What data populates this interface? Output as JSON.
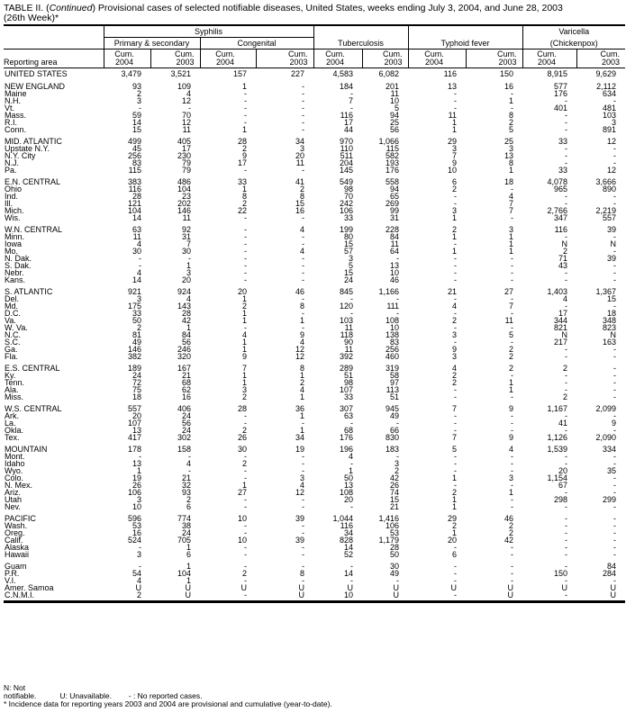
{
  "title": {
    "prefix": "TABLE II. (",
    "italic": "Continued",
    "rest": ") Provisional cases of selected notifiable diseases, United States, weeks ending July 3, 2004, and June 28, 2003",
    "line2": "(26th Week)*"
  },
  "headers": {
    "syphilis": "Syphilis",
    "primary": "Primary & secondary",
    "congenital": "Congenital",
    "tuberculosis": "Tuberculosis",
    "typhoid": "Typhoid fever",
    "varicella": "Varicella",
    "chickenpox": "(Chickenpox)",
    "reporting_area": "Reporting area",
    "cum": "Cum.",
    "y2004": "2004",
    "y2003": "2003"
  },
  "groups": [
    [
      [
        "UNITED STATES",
        "3,479",
        "3,521",
        "157",
        "227",
        "4,583",
        "6,082",
        "116",
        "150",
        "8,915",
        "9,629"
      ]
    ],
    [
      [
        "NEW ENGLAND",
        "93",
        "109",
        "1",
        "-",
        "184",
        "201",
        "13",
        "16",
        "577",
        "2,112"
      ],
      [
        "Maine",
        "2",
        "4",
        "-",
        "-",
        "-",
        "11",
        "-",
        "-",
        "176",
        "634"
      ],
      [
        "N.H.",
        "3",
        "12",
        "-",
        "-",
        "7",
        "10",
        "-",
        "1",
        "-",
        "-"
      ],
      [
        "Vt.",
        "-",
        "-",
        "-",
        "-",
        "-",
        "5",
        "-",
        "-",
        "401",
        "481"
      ],
      [
        "Mass.",
        "59",
        "70",
        "-",
        "-",
        "116",
        "94",
        "11",
        "8",
        "-",
        "103"
      ],
      [
        "R.I.",
        "14",
        "12",
        "-",
        "-",
        "17",
        "25",
        "1",
        "2",
        "-",
        "3"
      ],
      [
        "Conn.",
        "15",
        "11",
        "1",
        "-",
        "44",
        "56",
        "1",
        "5",
        "-",
        "891"
      ]
    ],
    [
      [
        "MID. ATLANTIC",
        "499",
        "405",
        "28",
        "34",
        "970",
        "1,066",
        "29",
        "25",
        "33",
        "12"
      ],
      [
        "Upstate N.Y.",
        "45",
        "17",
        "2",
        "3",
        "110",
        "115",
        "3",
        "3",
        "-",
        "-"
      ],
      [
        "N.Y. City",
        "256",
        "230",
        "9",
        "20",
        "511",
        "582",
        "7",
        "13",
        "-",
        "-"
      ],
      [
        "N.J.",
        "83",
        "79",
        "17",
        "11",
        "204",
        "193",
        "9",
        "8",
        "-",
        "-"
      ],
      [
        "Pa.",
        "115",
        "79",
        "-",
        "-",
        "145",
        "176",
        "10",
        "1",
        "33",
        "12"
      ]
    ],
    [
      [
        "E.N. CENTRAL",
        "383",
        "486",
        "33",
        "41",
        "549",
        "558",
        "6",
        "18",
        "4,078",
        "3,666"
      ],
      [
        "Ohio",
        "116",
        "104",
        "1",
        "2",
        "98",
        "94",
        "2",
        "-",
        "965",
        "890"
      ],
      [
        "Ind.",
        "28",
        "23",
        "8",
        "8",
        "70",
        "65",
        "-",
        "4",
        "-",
        "-"
      ],
      [
        "Ill.",
        "121",
        "202",
        "2",
        "15",
        "242",
        "269",
        "-",
        "7",
        "-",
        "-"
      ],
      [
        "Mich.",
        "104",
        "146",
        "22",
        "16",
        "106",
        "99",
        "3",
        "7",
        "2,766",
        "2,219"
      ],
      [
        "Wis.",
        "14",
        "11",
        "-",
        "-",
        "33",
        "31",
        "1",
        "-",
        "347",
        "557"
      ]
    ],
    [
      [
        "W.N. CENTRAL",
        "63",
        "92",
        "-",
        "4",
        "199",
        "228",
        "2",
        "3",
        "116",
        "39"
      ],
      [
        "Minn.",
        "11",
        "31",
        "-",
        "-",
        "80",
        "84",
        "1",
        "1",
        "-",
        "-"
      ],
      [
        "Iowa",
        "4",
        "7",
        "-",
        "-",
        "15",
        "11",
        "-",
        "1",
        "N",
        "N"
      ],
      [
        "Mo.",
        "30",
        "30",
        "-",
        "4",
        "57",
        "64",
        "1",
        "1",
        "2",
        "-"
      ],
      [
        "N. Dak.",
        "-",
        "-",
        "-",
        "-",
        "3",
        "-",
        "-",
        "-",
        "71",
        "39"
      ],
      [
        "S. Dak.",
        "-",
        "1",
        "-",
        "-",
        "5",
        "13",
        "-",
        "-",
        "43",
        "-"
      ],
      [
        "Nebr.",
        "4",
        "3",
        "-",
        "-",
        "15",
        "10",
        "-",
        "-",
        "-",
        "-"
      ],
      [
        "Kans.",
        "14",
        "20",
        "-",
        "-",
        "24",
        "46",
        "-",
        "-",
        "-",
        "-"
      ]
    ],
    [
      [
        "S. ATLANTIC",
        "921",
        "924",
        "20",
        "46",
        "845",
        "1,166",
        "21",
        "27",
        "1,403",
        "1,367"
      ],
      [
        "Del.",
        "3",
        "4",
        "1",
        "-",
        "-",
        "-",
        "-",
        "-",
        "4",
        "15"
      ],
      [
        "Md.",
        "175",
        "143",
        "2",
        "8",
        "120",
        "111",
        "4",
        "7",
        "-",
        "-"
      ],
      [
        "D.C.",
        "33",
        "28",
        "1",
        "-",
        "-",
        "-",
        "-",
        "-",
        "17",
        "18"
      ],
      [
        "Va.",
        "50",
        "42",
        "1",
        "1",
        "103",
        "108",
        "2",
        "11",
        "344",
        "348"
      ],
      [
        "W. Va.",
        "2",
        "1",
        "-",
        "-",
        "11",
        "10",
        "-",
        "-",
        "821",
        "823"
      ],
      [
        "N.C.",
        "81",
        "84",
        "4",
        "9",
        "118",
        "138",
        "3",
        "5",
        "N",
        "N"
      ],
      [
        "S.C.",
        "49",
        "56",
        "1",
        "4",
        "90",
        "83",
        "-",
        "-",
        "217",
        "163"
      ],
      [
        "Ga.",
        "146",
        "246",
        "1",
        "12",
        "11",
        "256",
        "9",
        "2",
        "-",
        "-"
      ],
      [
        "Fla.",
        "382",
        "320",
        "9",
        "12",
        "392",
        "460",
        "3",
        "2",
        "-",
        "-"
      ]
    ],
    [
      [
        "E.S. CENTRAL",
        "189",
        "167",
        "7",
        "8",
        "289",
        "319",
        "4",
        "2",
        "2",
        "-"
      ],
      [
        "Ky.",
        "24",
        "21",
        "1",
        "1",
        "51",
        "58",
        "2",
        "-",
        "-",
        "-"
      ],
      [
        "Tenn.",
        "72",
        "68",
        "1",
        "2",
        "98",
        "97",
        "2",
        "1",
        "-",
        "-"
      ],
      [
        "Ala.",
        "75",
        "62",
        "3",
        "4",
        "107",
        "113",
        "-",
        "1",
        "-",
        "-"
      ],
      [
        "Miss.",
        "18",
        "16",
        "2",
        "1",
        "33",
        "51",
        "-",
        "-",
        "2",
        "-"
      ]
    ],
    [
      [
        "W.S. CENTRAL",
        "557",
        "406",
        "28",
        "36",
        "307",
        "945",
        "7",
        "9",
        "1,167",
        "2,099"
      ],
      [
        "Ark.",
        "20",
        "24",
        "-",
        "1",
        "63",
        "49",
        "-",
        "-",
        "-",
        "-"
      ],
      [
        "La.",
        "107",
        "56",
        "-",
        "-",
        "-",
        "-",
        "-",
        "-",
        "41",
        "9"
      ],
      [
        "Okla.",
        "13",
        "24",
        "2",
        "1",
        "68",
        "66",
        "-",
        "-",
        "-",
        "-"
      ],
      [
        "Tex.",
        "417",
        "302",
        "26",
        "34",
        "176",
        "830",
        "7",
        "9",
        "1,126",
        "2,090"
      ]
    ],
    [
      [
        "MOUNTAIN",
        "178",
        "158",
        "30",
        "19",
        "196",
        "183",
        "5",
        "4",
        "1,539",
        "334"
      ],
      [
        "Mont.",
        "-",
        "-",
        "-",
        "-",
        "4",
        "-",
        "-",
        "-",
        "-",
        "-"
      ],
      [
        "Idaho",
        "13",
        "4",
        "2",
        "-",
        "-",
        "3",
        "-",
        "-",
        "-",
        "-"
      ],
      [
        "Wyo.",
        "1",
        "-",
        "-",
        "-",
        "1",
        "2",
        "-",
        "-",
        "20",
        "35"
      ],
      [
        "Colo.",
        "19",
        "21",
        "-",
        "3",
        "50",
        "42",
        "1",
        "3",
        "1,154",
        "-"
      ],
      [
        "N. Mex.",
        "26",
        "32",
        "1",
        "4",
        "13",
        "26",
        "-",
        "-",
        "67",
        "-"
      ],
      [
        "Ariz.",
        "106",
        "93",
        "27",
        "12",
        "108",
        "74",
        "2",
        "1",
        "-",
        "-"
      ],
      [
        "Utah",
        "3",
        "2",
        "-",
        "-",
        "20",
        "15",
        "1",
        "-",
        "298",
        "299"
      ],
      [
        "Nev.",
        "10",
        "6",
        "-",
        "-",
        "-",
        "21",
        "1",
        "-",
        "-",
        "-"
      ]
    ],
    [
      [
        "PACIFIC",
        "596",
        "774",
        "10",
        "39",
        "1,044",
        "1,416",
        "29",
        "46",
        "-",
        "-"
      ],
      [
        "Wash.",
        "53",
        "38",
        "-",
        "-",
        "116",
        "106",
        "2",
        "2",
        "-",
        "-"
      ],
      [
        "Oreg.",
        "16",
        "24",
        "-",
        "-",
        "34",
        "53",
        "1",
        "2",
        "-",
        "-"
      ],
      [
        "Calif.",
        "524",
        "705",
        "10",
        "39",
        "828",
        "1,179",
        "20",
        "42",
        "-",
        "-"
      ],
      [
        "Alaska",
        "-",
        "1",
        "-",
        "-",
        "14",
        "28",
        "-",
        "-",
        "-",
        "-"
      ],
      [
        "Hawaii",
        "3",
        "6",
        "-",
        "-",
        "52",
        "50",
        "6",
        "-",
        "-",
        "-"
      ]
    ],
    [
      [
        "Guam",
        "-",
        "1",
        "-",
        "-",
        "-",
        "30",
        "-",
        "-",
        "-",
        "84"
      ],
      [
        "P.R.",
        "54",
        "104",
        "2",
        "8",
        "14",
        "49",
        "-",
        "-",
        "150",
        "284"
      ],
      [
        "V.I.",
        "4",
        "1",
        "-",
        "-",
        "-",
        "-",
        "-",
        "-",
        "-",
        "-"
      ],
      [
        "Amer. Samoa",
        "U",
        "U",
        "U",
        "U",
        "U",
        "U",
        "U",
        "U",
        "U",
        "U"
      ],
      [
        "C.N.M.I.",
        "2",
        "U",
        "-",
        "U",
        "10",
        "U",
        "-",
        "U",
        "-",
        "U"
      ]
    ]
  ],
  "footnotes": {
    "n": "N: Not notifiable.",
    "u": "U: Unavailable.",
    "dash": "- : No reported cases.",
    "star": "* Incidence data for reporting years 2003 and 2004 are provisional and cumulative (year-to-date)."
  }
}
